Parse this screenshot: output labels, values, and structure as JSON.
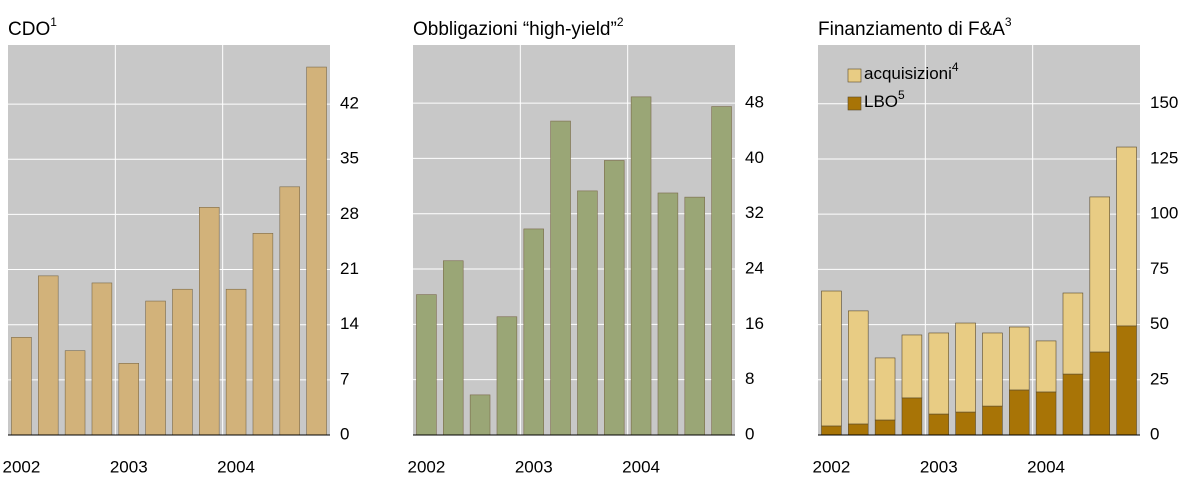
{
  "chart_data": [
    {
      "type": "bar",
      "title": "CDO",
      "title_sup": "1",
      "categories": [
        "2002",
        null,
        null,
        null,
        "2003",
        null,
        null,
        null,
        "2004",
        null,
        null,
        null
      ],
      "values": [
        12.4,
        20.2,
        10.7,
        19.3,
        9.1,
        17.0,
        18.5,
        28.9,
        18.5,
        25.6,
        31.5,
        46.7
      ],
      "color": "#d2b27a",
      "ylim": [
        0,
        49.5
      ],
      "yticks": [
        0,
        7,
        14,
        21,
        28,
        35,
        42
      ],
      "grid": true
    },
    {
      "type": "bar",
      "title": "Obbligazioni “high-yield”",
      "title_sup": "2",
      "categories": [
        "2002",
        null,
        null,
        null,
        "2003",
        null,
        null,
        null,
        "2004",
        null,
        null,
        null
      ],
      "values": [
        20.3,
        25.2,
        5.8,
        17.1,
        29.8,
        45.4,
        35.3,
        39.7,
        48.9,
        35.0,
        34.4,
        47.5
      ],
      "color": "#9aa676",
      "ylim": [
        0,
        56.4
      ],
      "yticks": [
        0,
        8,
        16,
        24,
        32,
        40,
        48
      ],
      "grid": true
    },
    {
      "type": "stacked_bar",
      "title": "Finanziamento di F&A",
      "title_sup": "3",
      "categories": [
        "2002",
        null,
        null,
        null,
        "2003",
        null,
        null,
        null,
        "2004",
        null,
        null,
        null
      ],
      "series": [
        {
          "name": "LBO",
          "name_sup": "5",
          "color": "#a87406",
          "values": [
            4.1,
            5.0,
            6.8,
            16.8,
            9.5,
            10.4,
            13.1,
            20.4,
            19.5,
            27.6,
            37.6,
            49.4
          ]
        },
        {
          "name": "acquisizioni",
          "name_sup": "4",
          "color": "#e8cc84",
          "values": [
            61.1,
            51.2,
            28.1,
            28.5,
            36.7,
            40.3,
            33.1,
            28.5,
            23.1,
            36.7,
            70.2,
            81.0
          ]
        }
      ],
      "ylim": [
        0,
        176.6
      ],
      "yticks": [
        0,
        25,
        50,
        75,
        100,
        125,
        150
      ],
      "grid": true,
      "legend": "top-left"
    }
  ]
}
